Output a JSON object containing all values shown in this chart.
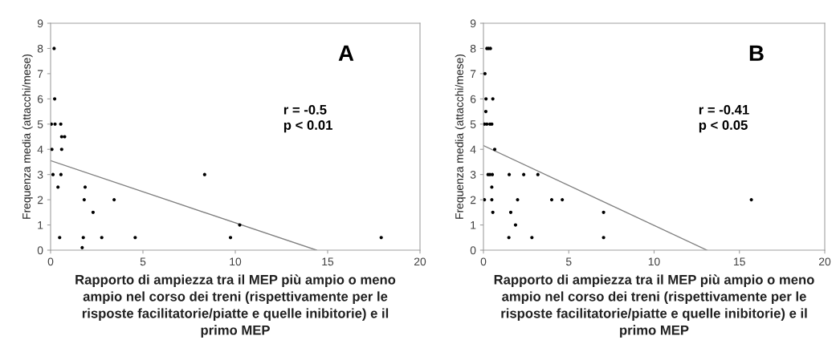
{
  "chart_data": [
    {
      "type": "scatter",
      "xlabel": "Rapporto di ampiezza tra il MEP più ampio o meno\nampio nel corso dei treni (rispettivamente per le\nrisposte facilitatorie/piatte e quelle inibitorie) e il\nprimo MEP",
      "ylabel": "Frequenza media (attacchi/mese)",
      "xlim": [
        0,
        20
      ],
      "xticks": [
        0,
        5,
        10,
        15,
        20
      ],
      "ylim": [
        0,
        9
      ],
      "yticks": [
        0,
        1,
        2,
        3,
        4,
        5,
        6,
        7,
        8,
        9
      ],
      "grid": false,
      "legend": false,
      "marker": "circle",
      "annotations": [
        "A",
        "r = -0.5\np < 0.01"
      ],
      "series": [
        {
          "color": "#000000",
          "x": [
            0.19,
            0.22,
            0.04,
            0.24,
            0.55,
            0.6,
            0.76,
            0.07,
            0.6,
            0.13,
            0.56,
            0.4,
            1.87,
            1.82,
            2.3,
            3.44,
            0.49,
            1.77,
            2.77,
            4.58,
            1.71,
            8.34,
            9.74,
            10.24,
            17.9
          ],
          "values": [
            8,
            6,
            5,
            5,
            5,
            4.5,
            4.5,
            4,
            4,
            3,
            3,
            2.5,
            2.5,
            2,
            1.5,
            2,
            0.5,
            0.5,
            0.5,
            0.5,
            0.1,
            3,
            0.5,
            1,
            0.5
          ]
        },
        {
          "type": "line",
          "color": "#808080",
          "x": [
            0,
            14.4
          ],
          "values": [
            3.55,
            0
          ],
          "marker": "none"
        }
      ]
    },
    {
      "type": "scatter",
      "xlabel": "Rapporto di ampiezza tra il MEP più ampio o meno\nampio nel corso dei treni (rispettivamente per le\nrisposte facilitatorie/piatte e quelle inibitorie) e il\nprimo MEP",
      "ylabel": "Frequenza media (attacchi/mese)",
      "xlim": [
        0,
        20
      ],
      "xticks": [
        0,
        5,
        10,
        15,
        20
      ],
      "ylim": [
        0,
        9
      ],
      "yticks": [
        0,
        1,
        2,
        3,
        4,
        5,
        6,
        7,
        8,
        9
      ],
      "grid": false,
      "legend": false,
      "marker": "circle",
      "annotations": [
        "B",
        "r = -0.41\np < 0.05"
      ],
      "series": [
        {
          "color": "#000000",
          "x": [
            0.2,
            0.3,
            0.41,
            0.09,
            0.15,
            0.55,
            0.14,
            0.06,
            0.2,
            0.38,
            0.49,
            0.66,
            0.27,
            0.38,
            0.52,
            1.51,
            2.36,
            3.19,
            0.49,
            0.06,
            0.49,
            2.0,
            4.0,
            4.62,
            0.55,
            1.6,
            7.04,
            1.88,
            1.49,
            2.84,
            7.04,
            15.7
          ],
          "values": [
            8,
            8,
            8,
            7,
            6,
            6,
            5.5,
            5,
            5,
            5,
            5,
            4,
            3,
            3,
            3,
            3,
            3,
            3,
            2.5,
            2,
            2,
            2,
            2,
            2,
            1.5,
            1.5,
            1.5,
            1,
            0.5,
            0.5,
            0.5,
            2
          ]
        },
        {
          "type": "line",
          "color": "#808080",
          "x": [
            0,
            13.1
          ],
          "values": [
            4.15,
            0
          ],
          "marker": "none"
        }
      ]
    }
  ]
}
